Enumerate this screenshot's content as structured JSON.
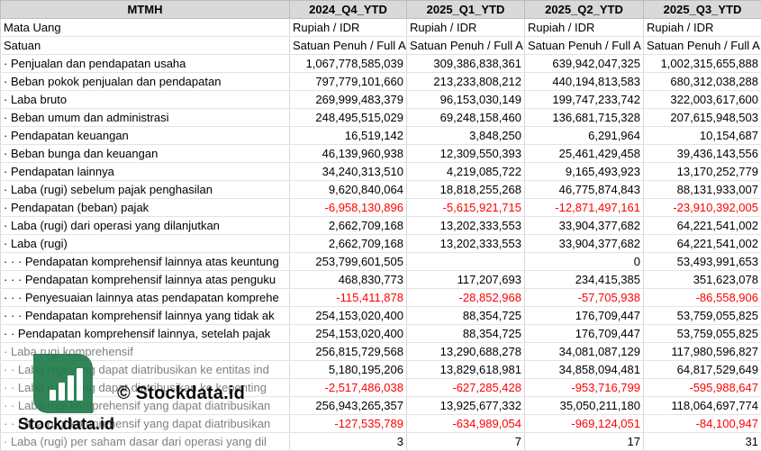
{
  "header": [
    "MTMH",
    "2024_Q4_YTD",
    "2025_Q1_YTD",
    "2025_Q2_YTD",
    "2025_Q3_YTD"
  ],
  "meta_rows": [
    {
      "label": "Mata Uang",
      "values": [
        "Rupiah / IDR",
        "Rupiah / IDR",
        "Rupiah / IDR",
        "Rupiah / IDR"
      ]
    },
    {
      "label": "Satuan",
      "values": [
        "Satuan Penuh / Full A",
        "Satuan Penuh / Full A",
        "Satuan Penuh / Full A",
        "Satuan Penuh / Full A"
      ]
    }
  ],
  "rows": [
    {
      "label": "· Penjualan dan pendapatan usaha",
      "values": [
        "1,067,778,585,039",
        "309,386,838,361",
        "639,942,047,325",
        "1,002,315,655,888"
      ],
      "neg": [
        false,
        false,
        false,
        false
      ]
    },
    {
      "label": "· Beban pokok penjualan dan pendapatan",
      "values": [
        "797,779,101,660",
        "213,233,808,212",
        "440,194,813,583",
        "680,312,038,288"
      ],
      "neg": [
        false,
        false,
        false,
        false
      ]
    },
    {
      "label": "· Laba bruto",
      "values": [
        "269,999,483,379",
        "96,153,030,149",
        "199,747,233,742",
        "322,003,617,600"
      ],
      "neg": [
        false,
        false,
        false,
        false
      ]
    },
    {
      "label": "· Beban umum dan administrasi",
      "values": [
        "248,495,515,029",
        "69,248,158,460",
        "136,681,715,328",
        "207,615,948,503"
      ],
      "neg": [
        false,
        false,
        false,
        false
      ]
    },
    {
      "label": "· Pendapatan keuangan",
      "values": [
        "16,519,142",
        "3,848,250",
        "6,291,964",
        "10,154,687"
      ],
      "neg": [
        false,
        false,
        false,
        false
      ]
    },
    {
      "label": "· Beban bunga dan keuangan",
      "values": [
        "46,139,960,938",
        "12,309,550,393",
        "25,461,429,458",
        "39,436,143,556"
      ],
      "neg": [
        false,
        false,
        false,
        false
      ]
    },
    {
      "label": "· Pendapatan lainnya",
      "values": [
        "34,240,313,510",
        "4,219,085,722",
        "9,165,493,923",
        "13,170,252,779"
      ],
      "neg": [
        false,
        false,
        false,
        false
      ]
    },
    {
      "label": "· Laba (rugi) sebelum pajak penghasilan",
      "values": [
        "9,620,840,064",
        "18,818,255,268",
        "46,775,874,843",
        "88,131,933,007"
      ],
      "neg": [
        false,
        false,
        false,
        false
      ]
    },
    {
      "label": "· Pendapatan (beban) pajak",
      "values": [
        "-6,958,130,896",
        "-5,615,921,715",
        "-12,871,497,161",
        "-23,910,392,005"
      ],
      "neg": [
        true,
        true,
        true,
        true
      ]
    },
    {
      "label": "· Laba (rugi) dari operasi yang dilanjutkan",
      "values": [
        "2,662,709,168",
        "13,202,333,553",
        "33,904,377,682",
        "64,221,541,002"
      ],
      "neg": [
        false,
        false,
        false,
        false
      ]
    },
    {
      "label": "· Laba (rugi)",
      "values": [
        "2,662,709,168",
        "13,202,333,553",
        "33,904,377,682",
        "64,221,541,002"
      ],
      "neg": [
        false,
        false,
        false,
        false
      ]
    },
    {
      "label": "· · · Pendapatan komprehensif lainnya atas keuntung",
      "values": [
        "253,799,601,505",
        "",
        "0",
        "53,493,991,653"
      ],
      "neg": [
        false,
        false,
        false,
        false
      ]
    },
    {
      "label": "· · · Pendapatan komprehensif lainnya atas penguku",
      "values": [
        "468,830,773",
        "117,207,693",
        "234,415,385",
        "351,623,078"
      ],
      "neg": [
        false,
        false,
        false,
        false
      ]
    },
    {
      "label": "· · · Penyesuaian lainnya atas pendapatan komprehe",
      "values": [
        "-115,411,878",
        "-28,852,968",
        "-57,705,938",
        "-86,558,906"
      ],
      "neg": [
        true,
        true,
        true,
        true
      ]
    },
    {
      "label": "· · · Pendapatan komprehensif lainnya yang tidak ak",
      "values": [
        "254,153,020,400",
        "88,354,725",
        "176,709,447",
        "53,759,055,825"
      ],
      "neg": [
        false,
        false,
        false,
        false
      ]
    },
    {
      "label": "· · Pendapatan komprehensif lainnya, setelah pajak",
      "values": [
        "254,153,020,400",
        "88,354,725",
        "176,709,447",
        "53,759,055,825"
      ],
      "neg": [
        false,
        false,
        false,
        false
      ]
    },
    {
      "label": "· Laba rugi komprehensif",
      "values": [
        "256,815,729,568",
        "13,290,688,278",
        "34,081,087,129",
        "117,980,596,827"
      ],
      "neg": [
        false,
        false,
        false,
        false
      ],
      "grey": true
    },
    {
      "label": "· · Laba rugi yang dapat diatribusikan ke entitas ind",
      "values": [
        "5,180,195,206",
        "13,829,618,981",
        "34,858,094,481",
        "64,817,529,649"
      ],
      "neg": [
        false,
        false,
        false,
        false
      ],
      "grey": true
    },
    {
      "label": "· · Laba rugi yang dapat diatribusikan ke kepenting",
      "values": [
        "-2,517,486,038",
        "-627,285,428",
        "-953,716,799",
        "-595,988,647"
      ],
      "neg": [
        true,
        true,
        true,
        true
      ],
      "grey": true
    },
    {
      "label": "· · Laba rugi komprehensif yang dapat diatribusikan",
      "values": [
        "256,943,265,357",
        "13,925,677,332",
        "35,050,211,180",
        "118,064,697,774"
      ],
      "neg": [
        false,
        false,
        false,
        false
      ],
      "grey": true
    },
    {
      "label": "· · Laba rugi komprehensif yang dapat diatribusikan",
      "values": [
        "-127,535,789",
        "-634,989,054",
        "-969,124,051",
        "-84,100,947"
      ],
      "neg": [
        true,
        true,
        true,
        true
      ],
      "grey": true
    },
    {
      "label": "· Laba (rugi) per saham dasar dari operasi yang dil",
      "values": [
        "3",
        "7",
        "17",
        "31"
      ],
      "neg": [
        false,
        false,
        false,
        false
      ],
      "grey": true
    }
  ],
  "watermark": {
    "text_main": "© Stockdata.id",
    "text_logo": "Stockdata.id",
    "logo_color": "#1f7a4a"
  }
}
